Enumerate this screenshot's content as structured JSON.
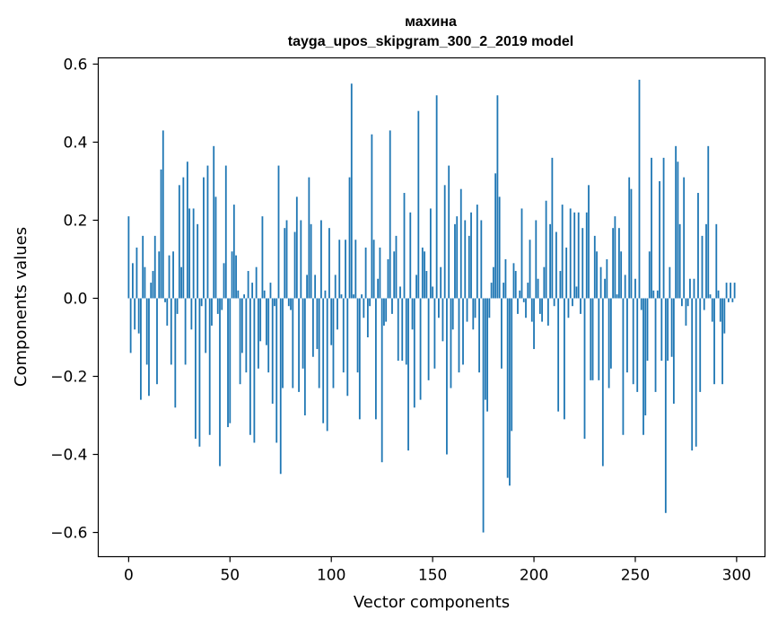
{
  "chart_data": {
    "type": "bar",
    "title": "махина",
    "subtitle": "tayga_upos_skipgram_300_2_2019 model",
    "xlabel": "Vector components",
    "ylabel": "Components values",
    "xlim": [
      -15,
      314
    ],
    "ylim": [
      -0.662,
      0.616
    ],
    "xticks": [
      0,
      50,
      100,
      150,
      200,
      250,
      300
    ],
    "xtick_labels": [
      "0",
      "50",
      "100",
      "150",
      "200",
      "250",
      "300"
    ],
    "yticks": [
      -0.6,
      -0.4,
      -0.2,
      0.0,
      0.2,
      0.4,
      0.6
    ],
    "ytick_labels": [
      "−0.6",
      "−0.4",
      "−0.2",
      "0.0",
      "0.2",
      "0.4",
      "0.6"
    ],
    "grid": false,
    "color": "#1f77b4",
    "values": [
      0.21,
      -0.14,
      0.09,
      -0.08,
      0.13,
      -0.09,
      -0.26,
      0.16,
      0.08,
      -0.17,
      -0.25,
      0.04,
      0.07,
      0.16,
      -0.22,
      0.12,
      0.33,
      0.43,
      -0.01,
      -0.07,
      0.11,
      -0.17,
      0.12,
      -0.28,
      -0.04,
      0.29,
      0.08,
      0.31,
      -0.17,
      0.35,
      0.23,
      -0.08,
      0.23,
      -0.36,
      0.19,
      -0.38,
      -0.02,
      0.31,
      -0.14,
      0.34,
      -0.35,
      -0.07,
      0.39,
      0.26,
      -0.04,
      -0.43,
      -0.03,
      0.09,
      0.34,
      -0.33,
      -0.32,
      0.12,
      0.24,
      0.11,
      0.02,
      -0.22,
      -0.14,
      0.01,
      -0.19,
      0.07,
      -0.35,
      0.04,
      -0.37,
      0.08,
      -0.18,
      -0.11,
      0.21,
      0.02,
      -0.12,
      -0.19,
      0.04,
      -0.27,
      -0.02,
      -0.37,
      0.34,
      -0.45,
      -0.23,
      0.18,
      0.2,
      -0.02,
      -0.03,
      -0.23,
      0.17,
      0.26,
      -0.24,
      0.2,
      -0.18,
      -0.3,
      0.06,
      0.31,
      0.19,
      -0.15,
      0.06,
      -0.13,
      -0.23,
      0.2,
      -0.32,
      0.02,
      -0.34,
      0.18,
      -0.12,
      -0.23,
      0.06,
      -0.08,
      0.15,
      0.01,
      -0.19,
      0.15,
      -0.25,
      0.31,
      0.55,
      0.01,
      0.15,
      -0.19,
      -0.31,
      0.01,
      -0.05,
      0.13,
      -0.1,
      -0.02,
      0.42,
      0.15,
      -0.31,
      0.05,
      0.13,
      -0.42,
      -0.07,
      -0.06,
      0.1,
      0.43,
      -0.04,
      0.12,
      0.16,
      -0.16,
      0.03,
      -0.16,
      0.27,
      -0.17,
      -0.39,
      0.22,
      -0.08,
      -0.28,
      0.06,
      0.48,
      -0.26,
      0.13,
      0.12,
      0.07,
      -0.21,
      0.23,
      0.03,
      -0.18,
      0.52,
      -0.05,
      0.08,
      -0.11,
      0.29,
      -0.4,
      0.34,
      -0.23,
      -0.08,
      0.19,
      0.21,
      -0.19,
      0.28,
      -0.17,
      0.2,
      -0.06,
      0.16,
      0.22,
      -0.08,
      -0.05,
      0.24,
      -0.19,
      0.2,
      -0.6,
      -0.26,
      -0.29,
      -0.05,
      0.04,
      0.08,
      0.32,
      0.52,
      0.26,
      -0.18,
      0.04,
      0.1,
      -0.46,
      -0.48,
      -0.34,
      0.09,
      0.07,
      -0.04,
      0.02,
      0.23,
      -0.01,
      -0.05,
      0.04,
      0.15,
      -0.06,
      -0.13,
      0.2,
      0.05,
      -0.04,
      -0.06,
      0.08,
      0.25,
      -0.07,
      0.19,
      0.36,
      -0.02,
      0.17,
      -0.29,
      0.07,
      0.24,
      -0.31,
      0.13,
      -0.05,
      0.23,
      -0.02,
      0.22,
      0.03,
      0.22,
      -0.04,
      0.18,
      -0.36,
      0.22,
      0.29,
      -0.21,
      -0.21,
      0.16,
      0.12,
      -0.21,
      0.08,
      -0.43,
      0.05,
      0.1,
      -0.23,
      -0.18,
      0.18,
      0.21,
      0.01,
      0.18,
      0.12,
      -0.35,
      0.06,
      -0.19,
      0.31,
      0.28,
      -0.22,
      0.05,
      -0.24,
      0.56,
      -0.03,
      -0.35,
      -0.3,
      -0.16,
      0.12,
      0.36,
      0.02,
      -0.24,
      0.02,
      0.3,
      -0.16,
      0.36,
      -0.55,
      -0.16,
      0.08,
      -0.15,
      -0.27,
      0.39,
      0.35,
      0.19,
      -0.02,
      0.31,
      -0.07,
      -0.02,
      0.05,
      -0.39,
      0.05,
      -0.38,
      0.27,
      -0.24,
      0.16,
      -0.03,
      0.19,
      0.39,
      0.01,
      -0.06,
      -0.22,
      0.19,
      0.02,
      -0.06,
      -0.22,
      -0.09,
      0.04,
      -0.01,
      0.04,
      -0.01,
      0.04
    ]
  }
}
